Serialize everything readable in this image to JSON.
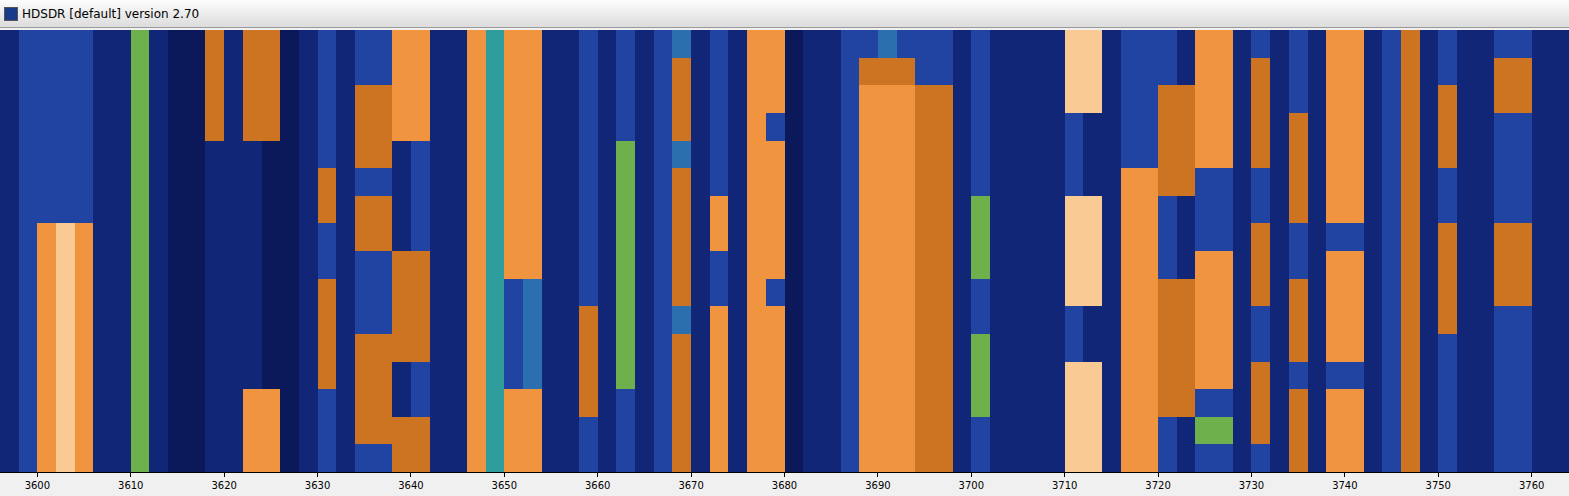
{
  "chart_data": {
    "type": "heatmap",
    "title": "HDSDR [default]  version 2.70",
    "x": [
      3597,
      3599,
      3601,
      3603,
      3605,
      3607,
      3609,
      3611,
      3613,
      3615,
      3617,
      3619,
      3621,
      3623,
      3625,
      3627,
      3629,
      3631,
      3633,
      3635,
      3637,
      3639,
      3641,
      3643,
      3645,
      3647,
      3649,
      3651,
      3653,
      3655,
      3657,
      3659,
      3661,
      3663,
      3665,
      3667,
      3669,
      3671,
      3673,
      3675,
      3677,
      3679,
      3681,
      3683,
      3685,
      3687,
      3689,
      3691,
      3693,
      3695,
      3697,
      3699,
      3701,
      3703,
      3705,
      3707,
      3709,
      3711,
      3713,
      3715,
      3717,
      3719,
      3721,
      3723,
      3725,
      3727,
      3729,
      3731,
      3733,
      3735,
      3737,
      3739,
      3741,
      3743,
      3745,
      3747,
      3749,
      3751,
      3753,
      3755,
      3757,
      3759,
      3761,
      3763
    ],
    "xlim": [
      3596,
      3764
    ],
    "xticks": [
      3600,
      3610,
      3620,
      3630,
      3640,
      3650,
      3660,
      3670,
      3680,
      3690,
      3700,
      3710,
      3720,
      3730,
      3740,
      3750,
      3760
    ],
    "tick_labels": "x",
    "zlim": [
      0,
      10
    ],
    "z": [
      [
        2,
        3,
        3,
        3,
        3,
        2,
        2,
        6,
        2,
        1,
        1,
        7,
        2,
        7,
        7,
        1,
        2,
        3,
        2,
        3,
        3,
        8,
        8,
        2,
        2,
        8,
        5,
        8,
        8,
        2,
        2,
        3,
        2,
        3,
        2,
        3,
        4,
        2,
        3,
        2,
        8,
        8,
        1,
        2,
        2,
        3,
        3,
        4,
        3,
        3,
        3,
        2,
        3,
        2,
        2,
        2,
        2,
        9,
        9,
        2,
        3,
        3,
        3,
        2,
        8,
        8,
        2,
        3,
        2,
        3,
        2,
        8,
        8,
        2,
        3,
        7,
        2,
        3,
        2,
        2,
        3,
        3,
        2,
        2
      ],
      [
        2,
        3,
        3,
        3,
        3,
        2,
        2,
        6,
        2,
        1,
        1,
        7,
        2,
        7,
        7,
        1,
        2,
        3,
        2,
        3,
        3,
        8,
        8,
        2,
        2,
        8,
        5,
        8,
        8,
        2,
        2,
        3,
        2,
        3,
        2,
        3,
        7,
        2,
        3,
        2,
        8,
        8,
        1,
        2,
        2,
        3,
        7,
        7,
        7,
        3,
        3,
        2,
        3,
        2,
        2,
        2,
        2,
        9,
        9,
        2,
        3,
        3,
        3,
        2,
        8,
        8,
        2,
        7,
        2,
        3,
        2,
        8,
        8,
        2,
        3,
        7,
        2,
        3,
        2,
        2,
        7,
        7,
        2,
        2
      ],
      [
        2,
        3,
        3,
        3,
        3,
        2,
        2,
        6,
        2,
        1,
        1,
        7,
        2,
        7,
        7,
        1,
        2,
        3,
        2,
        7,
        7,
        8,
        8,
        2,
        2,
        8,
        5,
        8,
        8,
        2,
        2,
        3,
        2,
        3,
        2,
        3,
        7,
        2,
        3,
        2,
        8,
        8,
        1,
        2,
        2,
        3,
        8,
        8,
        8,
        7,
        7,
        2,
        3,
        2,
        2,
        2,
        2,
        9,
        9,
        2,
        3,
        3,
        7,
        7,
        8,
        8,
        2,
        7,
        2,
        3,
        2,
        8,
        8,
        2,
        3,
        7,
        2,
        7,
        2,
        2,
        7,
        7,
        2,
        2
      ],
      [
        2,
        3,
        3,
        3,
        3,
        2,
        2,
        6,
        2,
        1,
        1,
        7,
        2,
        7,
        7,
        1,
        2,
        3,
        2,
        7,
        7,
        8,
        8,
        2,
        2,
        8,
        5,
        8,
        8,
        2,
        2,
        3,
        2,
        3,
        2,
        3,
        7,
        2,
        3,
        2,
        8,
        3,
        1,
        2,
        2,
        3,
        8,
        8,
        8,
        7,
        7,
        2,
        3,
        2,
        2,
        2,
        2,
        3,
        2,
        2,
        3,
        3,
        7,
        7,
        8,
        8,
        2,
        7,
        2,
        7,
        2,
        8,
        8,
        2,
        3,
        7,
        2,
        7,
        2,
        2,
        3,
        3,
        2,
        2
      ],
      [
        2,
        3,
        3,
        3,
        3,
        2,
        2,
        6,
        2,
        1,
        1,
        2,
        2,
        2,
        1,
        1,
        2,
        3,
        2,
        7,
        7,
        2,
        3,
        2,
        2,
        8,
        5,
        8,
        8,
        2,
        2,
        3,
        2,
        6,
        2,
        3,
        4,
        2,
        3,
        2,
        8,
        8,
        1,
        2,
        2,
        3,
        8,
        8,
        8,
        7,
        7,
        2,
        3,
        2,
        2,
        2,
        2,
        3,
        2,
        2,
        3,
        3,
        7,
        7,
        8,
        8,
        2,
        7,
        2,
        7,
        2,
        8,
        8,
        2,
        3,
        7,
        2,
        7,
        2,
        2,
        3,
        3,
        2,
        2
      ],
      [
        2,
        3,
        3,
        3,
        3,
        2,
        2,
        6,
        2,
        1,
        1,
        2,
        2,
        2,
        1,
        1,
        2,
        7,
        2,
        3,
        3,
        2,
        3,
        2,
        2,
        8,
        5,
        8,
        8,
        2,
        2,
        3,
        2,
        6,
        2,
        3,
        7,
        2,
        3,
        2,
        8,
        8,
        1,
        2,
        2,
        3,
        8,
        8,
        8,
        7,
        7,
        2,
        3,
        2,
        2,
        2,
        2,
        3,
        2,
        2,
        8,
        8,
        7,
        7,
        3,
        3,
        2,
        3,
        2,
        7,
        2,
        8,
        8,
        2,
        3,
        7,
        2,
        3,
        2,
        2,
        3,
        3,
        2,
        2
      ],
      [
        2,
        3,
        3,
        3,
        3,
        2,
        2,
        6,
        2,
        1,
        1,
        2,
        2,
        2,
        1,
        1,
        2,
        7,
        2,
        7,
        7,
        2,
        3,
        2,
        2,
        8,
        5,
        8,
        8,
        2,
        2,
        3,
        2,
        6,
        2,
        3,
        7,
        2,
        8,
        2,
        8,
        8,
        1,
        2,
        2,
        3,
        8,
        8,
        8,
        7,
        7,
        2,
        6,
        2,
        2,
        2,
        2,
        9,
        9,
        2,
        8,
        8,
        3,
        2,
        3,
        3,
        2,
        3,
        2,
        7,
        2,
        8,
        8,
        2,
        3,
        7,
        2,
        3,
        2,
        2,
        3,
        3,
        2,
        2
      ],
      [
        2,
        3,
        8,
        9,
        8,
        2,
        2,
        6,
        2,
        1,
        1,
        2,
        2,
        2,
        1,
        1,
        2,
        3,
        2,
        7,
        7,
        2,
        3,
        2,
        2,
        8,
        5,
        8,
        8,
        2,
        2,
        3,
        2,
        6,
        2,
        3,
        7,
        2,
        8,
        2,
        8,
        8,
        1,
        2,
        2,
        3,
        8,
        8,
        8,
        7,
        7,
        2,
        6,
        2,
        2,
        2,
        2,
        9,
        9,
        2,
        8,
        8,
        3,
        2,
        3,
        3,
        2,
        7,
        2,
        3,
        2,
        3,
        3,
        2,
        3,
        7,
        2,
        7,
        2,
        2,
        7,
        7,
        2,
        2
      ],
      [
        2,
        3,
        8,
        9,
        8,
        2,
        2,
        6,
        2,
        1,
        1,
        2,
        2,
        2,
        1,
        1,
        2,
        3,
        2,
        3,
        3,
        7,
        7,
        2,
        2,
        8,
        5,
        8,
        8,
        2,
        2,
        3,
        2,
        6,
        2,
        3,
        7,
        2,
        3,
        2,
        8,
        8,
        1,
        2,
        2,
        3,
        8,
        8,
        8,
        7,
        7,
        2,
        6,
        2,
        2,
        2,
        2,
        9,
        9,
        2,
        8,
        8,
        3,
        2,
        8,
        8,
        2,
        7,
        2,
        3,
        2,
        8,
        8,
        2,
        3,
        7,
        2,
        7,
        2,
        2,
        7,
        7,
        2,
        2
      ],
      [
        2,
        3,
        8,
        9,
        8,
        2,
        2,
        6,
        2,
        1,
        1,
        2,
        2,
        2,
        1,
        1,
        2,
        7,
        2,
        3,
        3,
        7,
        7,
        2,
        2,
        8,
        5,
        3,
        4,
        2,
        2,
        3,
        2,
        6,
        2,
        3,
        7,
        2,
        3,
        2,
        8,
        3,
        1,
        2,
        2,
        3,
        8,
        8,
        8,
        7,
        7,
        2,
        3,
        2,
        2,
        2,
        2,
        9,
        9,
        2,
        8,
        8,
        7,
        7,
        8,
        8,
        2,
        7,
        2,
        7,
        2,
        8,
        8,
        2,
        3,
        7,
        2,
        7,
        2,
        2,
        7,
        7,
        2,
        2
      ],
      [
        2,
        3,
        8,
        9,
        8,
        2,
        2,
        6,
        2,
        1,
        1,
        2,
        2,
        2,
        1,
        1,
        2,
        7,
        2,
        3,
        3,
        7,
        7,
        2,
        2,
        8,
        5,
        3,
        4,
        2,
        2,
        7,
        2,
        6,
        2,
        3,
        4,
        2,
        8,
        2,
        8,
        8,
        1,
        2,
        2,
        3,
        8,
        8,
        8,
        7,
        7,
        2,
        3,
        2,
        2,
        2,
        2,
        3,
        2,
        2,
        8,
        8,
        7,
        7,
        8,
        8,
        2,
        3,
        2,
        7,
        2,
        8,
        8,
        2,
        3,
        7,
        2,
        7,
        2,
        2,
        3,
        3,
        2,
        2
      ],
      [
        2,
        3,
        8,
        9,
        8,
        2,
        2,
        6,
        2,
        1,
        1,
        2,
        2,
        2,
        1,
        1,
        2,
        7,
        2,
        7,
        7,
        7,
        7,
        2,
        2,
        8,
        5,
        3,
        4,
        2,
        2,
        7,
        2,
        6,
        2,
        3,
        7,
        2,
        8,
        2,
        8,
        8,
        1,
        2,
        2,
        3,
        8,
        8,
        8,
        7,
        7,
        2,
        6,
        2,
        2,
        2,
        2,
        3,
        2,
        2,
        8,
        8,
        7,
        7,
        8,
        8,
        2,
        3,
        2,
        7,
        2,
        8,
        8,
        2,
        3,
        7,
        2,
        3,
        2,
        2,
        3,
        3,
        2,
        2
      ],
      [
        2,
        3,
        8,
        9,
        8,
        2,
        2,
        6,
        2,
        1,
        1,
        2,
        2,
        2,
        1,
        1,
        2,
        7,
        2,
        7,
        7,
        2,
        3,
        2,
        2,
        8,
        5,
        3,
        4,
        2,
        2,
        7,
        2,
        6,
        2,
        3,
        7,
        2,
        8,
        2,
        8,
        8,
        1,
        2,
        2,
        3,
        8,
        8,
        8,
        7,
        7,
        2,
        6,
        2,
        2,
        2,
        2,
        9,
        9,
        2,
        8,
        8,
        7,
        7,
        8,
        8,
        2,
        7,
        2,
        3,
        2,
        3,
        3,
        2,
        3,
        7,
        2,
        3,
        2,
        2,
        3,
        3,
        2,
        2
      ],
      [
        2,
        3,
        8,
        9,
        8,
        2,
        2,
        6,
        2,
        1,
        1,
        2,
        2,
        8,
        8,
        1,
        2,
        3,
        2,
        7,
        7,
        2,
        3,
        2,
        2,
        8,
        5,
        8,
        8,
        2,
        2,
        7,
        2,
        3,
        2,
        3,
        7,
        2,
        8,
        2,
        8,
        8,
        1,
        2,
        2,
        3,
        8,
        8,
        8,
        7,
        7,
        2,
        6,
        2,
        2,
        2,
        2,
        9,
        9,
        2,
        8,
        8,
        7,
        7,
        3,
        3,
        2,
        7,
        2,
        7,
        2,
        8,
        8,
        2,
        3,
        7,
        2,
        3,
        2,
        2,
        3,
        3,
        2,
        2
      ],
      [
        2,
        3,
        8,
        9,
        8,
        2,
        2,
        6,
        2,
        1,
        1,
        2,
        2,
        8,
        8,
        1,
        2,
        3,
        2,
        7,
        7,
        7,
        7,
        2,
        2,
        8,
        5,
        8,
        8,
        2,
        2,
        3,
        2,
        3,
        2,
        3,
        7,
        2,
        8,
        2,
        8,
        8,
        1,
        2,
        2,
        3,
        8,
        8,
        8,
        7,
        7,
        2,
        3,
        2,
        2,
        2,
        2,
        9,
        9,
        2,
        8,
        8,
        3,
        2,
        6,
        6,
        2,
        7,
        2,
        7,
        2,
        8,
        8,
        2,
        3,
        7,
        2,
        3,
        2,
        2,
        3,
        3,
        2,
        2
      ],
      [
        2,
        3,
        8,
        9,
        8,
        2,
        2,
        6,
        2,
        1,
        1,
        2,
        2,
        8,
        8,
        1,
        2,
        3,
        2,
        3,
        3,
        7,
        7,
        2,
        2,
        8,
        5,
        8,
        8,
        2,
        2,
        3,
        2,
        3,
        2,
        3,
        7,
        2,
        8,
        2,
        8,
        8,
        1,
        2,
        2,
        3,
        8,
        8,
        8,
        7,
        7,
        2,
        3,
        2,
        2,
        2,
        2,
        9,
        9,
        2,
        8,
        8,
        3,
        2,
        3,
        3,
        2,
        3,
        2,
        7,
        2,
        8,
        8,
        2,
        3,
        7,
        2,
        3,
        2,
        2,
        3,
        3,
        2,
        2
      ]
    ]
  }
}
